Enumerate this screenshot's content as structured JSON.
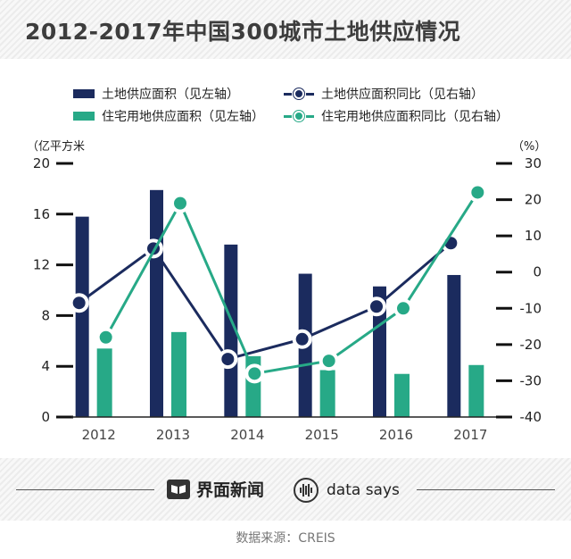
{
  "header": {
    "title": "2012-2017年中国300城市土地供应情况"
  },
  "legend": {
    "land_area": "土地供应面积（见左轴）",
    "land_yoy": "土地供应面积同比（见右轴）",
    "res_area": "住宅用地供应面积（见左轴）",
    "res_yoy": "住宅用地供应面积同比（见右轴）"
  },
  "units": {
    "left": "（亿平方米",
    "right": "（%）"
  },
  "colors": {
    "navy": "#1b2b5e",
    "green": "#27a987"
  },
  "chart_data": {
    "type": "bar",
    "categories": [
      "2012",
      "2013",
      "2014",
      "2015",
      "2016",
      "2017"
    ],
    "left_axis": {
      "min": 0,
      "max": 20,
      "ticks": [
        "0",
        "4",
        "8",
        "12",
        "16",
        "20"
      ]
    },
    "right_axis": {
      "min": -40,
      "max": 30,
      "ticks": [
        "-40",
        "-30",
        "-20",
        "-10",
        "0",
        "10",
        "20",
        "30"
      ]
    },
    "series": [
      {
        "name": "土地供应面积（见左轴）",
        "kind": "bar",
        "axis": "left",
        "values": [
          15.8,
          17.9,
          13.6,
          11.3,
          10.3,
          11.2
        ]
      },
      {
        "name": "住宅用地供应面积（见左轴）",
        "kind": "bar",
        "axis": "left",
        "values": [
          5.4,
          6.7,
          4.8,
          3.7,
          3.4,
          4.1
        ]
      },
      {
        "name": "土地供应面积同比（见右轴）",
        "kind": "line",
        "axis": "right",
        "values": [
          -8.5,
          6.5,
          -24.0,
          -18.5,
          -9.5,
          8.0
        ]
      },
      {
        "name": "住宅用地供应面积同比（见右轴）",
        "kind": "line",
        "axis": "right",
        "values": [
          -18,
          19,
          -28,
          -24.5,
          -10,
          22
        ]
      }
    ]
  },
  "footer": {
    "brand1": "界面新闻",
    "brand2": "data says",
    "source": "数据来源：CREIS"
  }
}
